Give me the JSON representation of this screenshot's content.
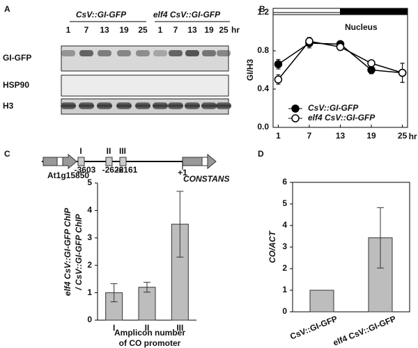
{
  "blot": {
    "panel_label": "A",
    "groups": [
      "CsV::GI-GFP",
      "elf4 CsV::GI-GFP"
    ],
    "timepoints": [
      "1",
      "7",
      "13",
      "19",
      "25",
      "1",
      "7",
      "13",
      "19",
      "25"
    ],
    "unit": "hr",
    "rows": [
      "GI-GFP",
      "HSP90",
      "H3"
    ]
  },
  "gene_diagram": {
    "left_gene": "At1g15850",
    "right_gene": "CONSTANS",
    "amplicons": [
      {
        "label": "I",
        "position": -3603
      },
      {
        "label": "II",
        "position": -2626
      },
      {
        "label": "III",
        "position": -2161
      }
    ],
    "tss": "+1"
  },
  "chart_data": [
    {
      "type": "line",
      "panel_label": "B",
      "y_label": "GI/H3",
      "x_label": "hr",
      "annotation": "Nucleus",
      "x": [
        1,
        7,
        13,
        19,
        25
      ],
      "xlim": [
        0,
        26
      ],
      "xticks": [
        1,
        7,
        13,
        19,
        25
      ],
      "ylim": [
        0,
        1.2
      ],
      "yticks": [
        {
          "value": 0,
          "label": "0.0"
        },
        0.4,
        0.8,
        1.2
      ],
      "light_dark_bar": {
        "light": [
          0,
          13
        ],
        "dark": [
          13,
          26
        ]
      },
      "series": [
        {
          "name": "CsV::GI-GFP",
          "color": "#000000",
          "fill": "#000000",
          "values": [
            0.66,
            0.88,
            0.87,
            0.6,
            0.57
          ],
          "errors": [
            0.05,
            0.05,
            0.03,
            0.04,
            0.1
          ]
        },
        {
          "name": "elf4 CsV::GI-GFP",
          "color": "#000000",
          "fill": "#ffffff",
          "values": [
            0.5,
            0.9,
            0.84,
            0.67,
            0.57
          ],
          "errors": [
            0.05,
            0.04,
            0.02,
            0.02,
            0.1
          ]
        }
      ]
    },
    {
      "type": "bar",
      "panel_label": "C",
      "y_label": [
        "elf4 CsV::GI-GFP ChIP",
        "/ CsV::GI-GFP ChIP"
      ],
      "x_label": [
        "Amplicon number",
        "of CO promoter"
      ],
      "categories": [
        "I",
        "II",
        "III"
      ],
      "values": [
        1.0,
        1.2,
        3.5
      ],
      "errors": [
        0.33,
        0.18,
        1.2
      ],
      "color": "#bdbdbd",
      "ylim": [
        0,
        5
      ],
      "yticks": [
        0,
        1,
        2,
        3,
        4,
        5
      ]
    },
    {
      "type": "bar",
      "panel_label": "D",
      "y_label": "CO/ACT",
      "categories": [
        "CsV::GI-GFP",
        "elf4 CsV::GI-GFP"
      ],
      "values": [
        1.0,
        3.43
      ],
      "errors": [
        null,
        1.4
      ],
      "color": "#bdbdbd",
      "ylim": [
        0,
        6
      ],
      "yticks": [
        0,
        1,
        2,
        3,
        4,
        5,
        6
      ]
    }
  ]
}
